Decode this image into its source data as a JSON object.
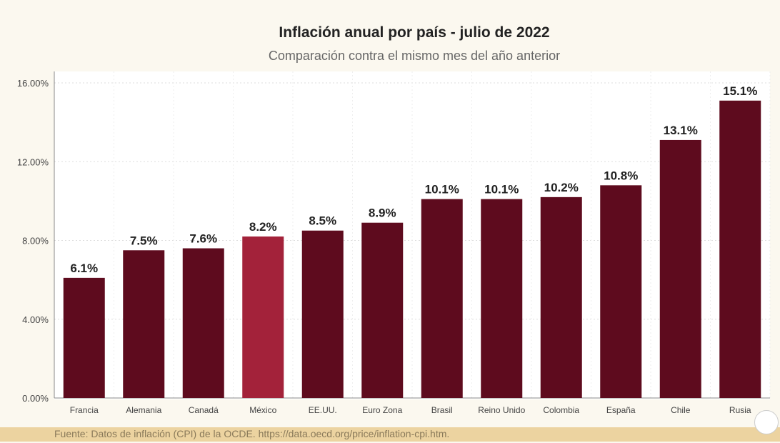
{
  "chart_data": {
    "type": "bar",
    "title": "Inflación anual por país - julio de 2022",
    "subtitle": "Comparación contra el mismo mes del año anterior",
    "categories": [
      "Francia",
      "Alemania",
      "Canadá",
      "México",
      "EE.UU.",
      "Euro Zona",
      "Brasil",
      "Reino Unido",
      "Colombia",
      "España",
      "Chile",
      "Rusia"
    ],
    "values": [
      6.1,
      7.5,
      7.6,
      8.2,
      8.5,
      8.9,
      10.1,
      10.1,
      10.2,
      10.8,
      13.1,
      15.1
    ],
    "data_labels": [
      "6.1%",
      "7.5%",
      "7.6%",
      "8.2%",
      "8.5%",
      "8.9%",
      "10.1%",
      "10.1%",
      "10.2%",
      "10.8%",
      "13.1%",
      "15.1%"
    ],
    "ylim": [
      0,
      16
    ],
    "yticks": [
      "0.00%",
      "4.00%",
      "8.00%",
      "12.00%",
      "16.00%"
    ],
    "grid": true,
    "colors": {
      "default": "#5e0b1e",
      "highlight": "#a3223a"
    },
    "highlight": "México"
  },
  "footer": {
    "source": "Fuente: Datos de inflación (CPI) de la OCDE. https://data.oecd.org/price/inflation-cpi.htm."
  }
}
